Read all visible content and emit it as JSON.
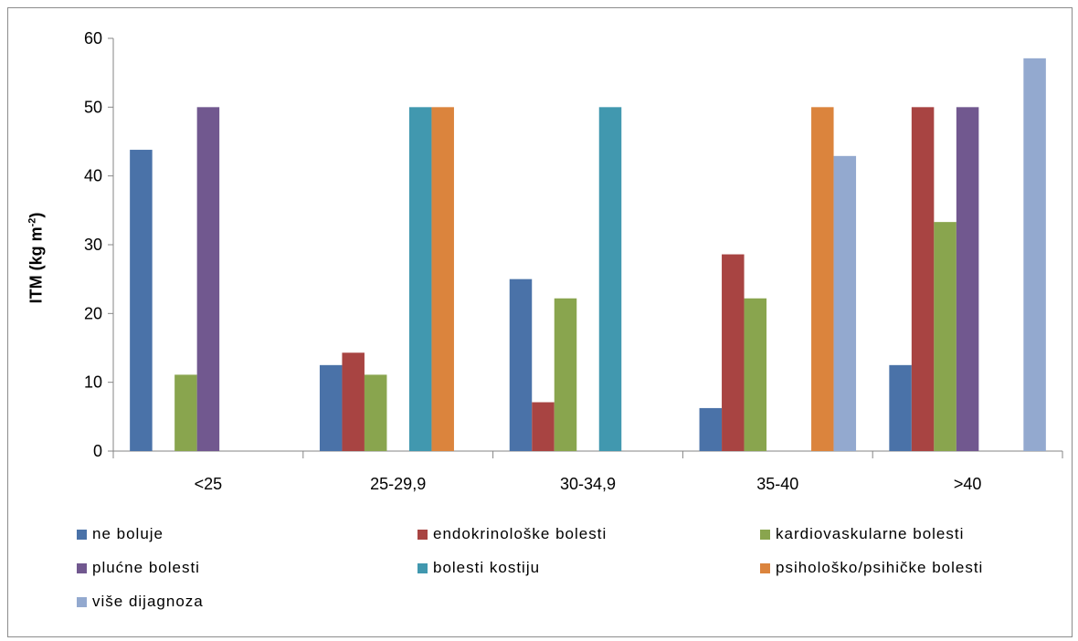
{
  "chart_data": {
    "type": "bar",
    "title": "",
    "xlabel": "",
    "ylabel": {
      "main": "ITM  (kg m",
      "sup": "-2",
      "close": ")"
    },
    "ylim": [
      0,
      60
    ],
    "yticks": [
      0,
      10,
      20,
      30,
      40,
      50,
      60
    ],
    "categories": [
      "<25",
      "25-29,9",
      "30-34,9",
      "35-40",
      ">40"
    ],
    "series": [
      {
        "name": "ne boluje",
        "color": "#4a72a8",
        "values": [
          43.8,
          12.5,
          25.0,
          6.25,
          12.5
        ]
      },
      {
        "name": "endokrinološke bolesti",
        "color": "#a84442",
        "values": [
          0,
          14.3,
          7.1,
          28.6,
          50.0
        ]
      },
      {
        "name": "kardiovaskularne bolesti",
        "color": "#89a54e",
        "values": [
          11.1,
          11.1,
          22.2,
          22.2,
          33.3
        ]
      },
      {
        "name": "plućne bolesti",
        "color": "#71588f",
        "values": [
          50.0,
          0,
          0,
          0,
          50.0
        ]
      },
      {
        "name": "bolesti kostiju",
        "color": "#4198af",
        "values": [
          0,
          50.0,
          50.0,
          0,
          0
        ]
      },
      {
        "name": "psihološko/psihičke bolesti",
        "color": "#db843d",
        "values": [
          0,
          50.0,
          0,
          50.0,
          0
        ]
      },
      {
        "name": "više dijagnoza",
        "color": "#93a9cf",
        "values": [
          0,
          0,
          0,
          42.9,
          57.1
        ]
      }
    ],
    "legend_position": "bottom",
    "grid": false
  }
}
